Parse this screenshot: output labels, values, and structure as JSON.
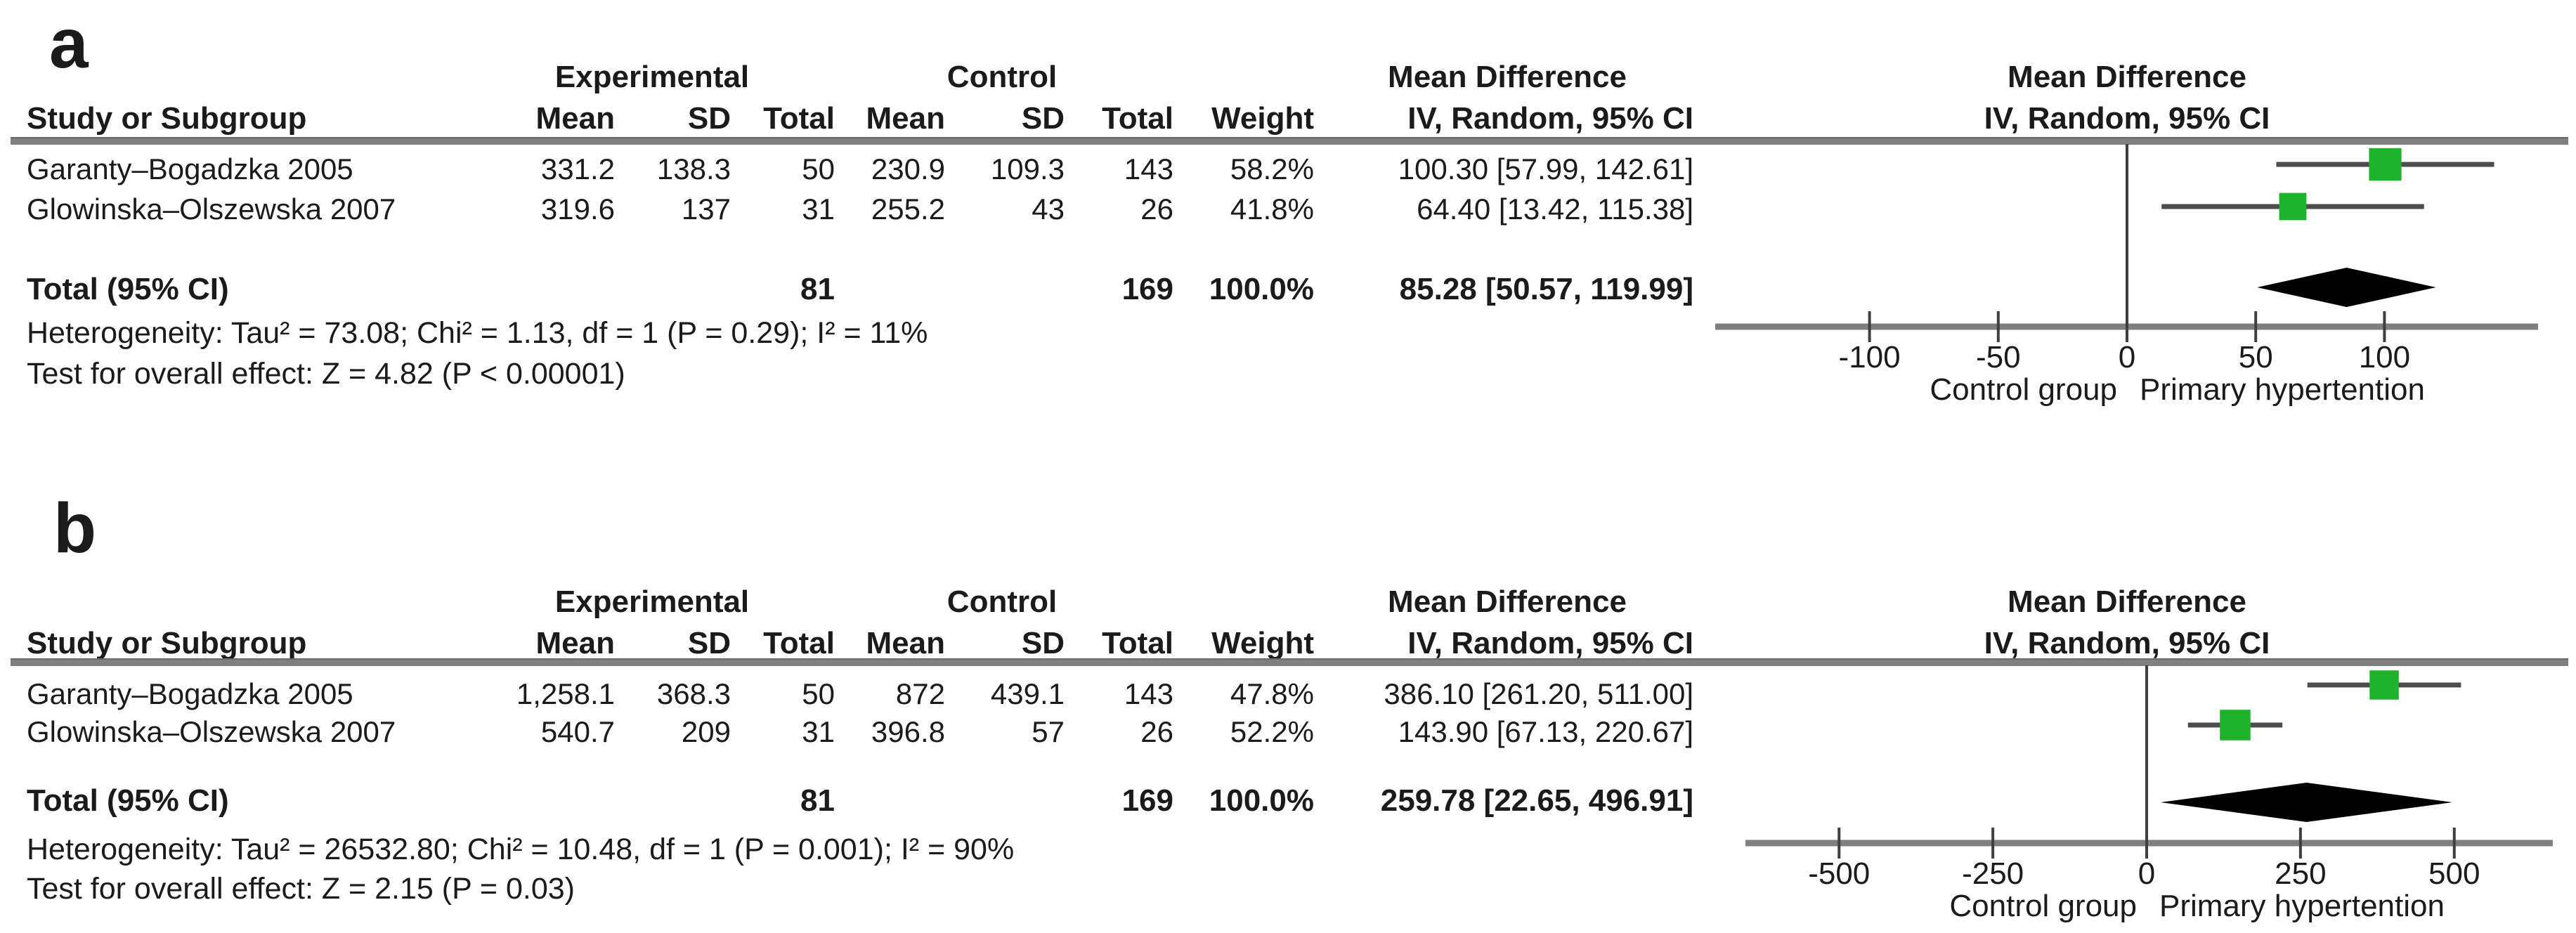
{
  "figure": {
    "colors": {
      "marker": "#1eb32b",
      "diamond": "#000000",
      "axis": "#7f7f7f",
      "ci_line": "#4d4d4d",
      "text": "#1b1b1b"
    },
    "panels": [
      {
        "label": "a",
        "headers": {
          "study": "Study or Subgroup",
          "experimental": "Experimental",
          "control": "Control",
          "mean_difference": "Mean Difference",
          "mean": "Mean",
          "sd": "SD",
          "total": "Total",
          "weight": "Weight",
          "iv": "IV, Random, 95% CI"
        },
        "studies": [
          {
            "name": "Garanty–Bogadzka 2005",
            "exp_mean": "331.2",
            "exp_sd": "138.3",
            "exp_total": "50",
            "ctl_mean": "230.9",
            "ctl_sd": "109.3",
            "ctl_total": "143",
            "weight": "58.2%",
            "md_ci": "100.30 [57.99, 142.61]"
          },
          {
            "name": "Glowinska–Olszewska 2007",
            "exp_mean": "319.6",
            "exp_sd": "137",
            "exp_total": "31",
            "ctl_mean": "255.2",
            "ctl_sd": "43",
            "ctl_total": "26",
            "weight": "41.8%",
            "md_ci": "64.40 [13.42, 115.38]"
          }
        ],
        "total_row": {
          "label": "Total (95% CI)",
          "exp_total": "81",
          "ctl_total": "169",
          "weight": "100.0%",
          "md_ci": "85.28 [50.57, 119.99]"
        },
        "heterogeneity": "Heterogeneity: Tau² = 73.08; Chi² = 1.13, df = 1 (P = 0.29); I² = 11%",
        "overall_effect": "Test for overall effect: Z = 4.82 (P < 0.00001)"
      },
      {
        "label": "b",
        "headers": {
          "study": "Study or Subgroup",
          "experimental": "Experimental",
          "control": "Control",
          "mean_difference": "Mean Difference",
          "mean": "Mean",
          "sd": "SD",
          "total": "Total",
          "weight": "Weight",
          "iv": "IV, Random, 95% CI"
        },
        "studies": [
          {
            "name": "Garanty–Bogadzka 2005",
            "exp_mean": "1,258.1",
            "exp_sd": "368.3",
            "exp_total": "50",
            "ctl_mean": "872",
            "ctl_sd": "439.1",
            "ctl_total": "143",
            "weight": "47.8%",
            "md_ci": "386.10 [261.20, 511.00]"
          },
          {
            "name": "Glowinska–Olszewska 2007",
            "exp_mean": "540.7",
            "exp_sd": "209",
            "exp_total": "31",
            "ctl_mean": "396.8",
            "ctl_sd": "57",
            "ctl_total": "26",
            "weight": "52.2%",
            "md_ci": "143.90 [67.13, 220.67]"
          }
        ],
        "total_row": {
          "label": "Total (95% CI)",
          "exp_total": "81",
          "ctl_total": "169",
          "weight": "100.0%",
          "md_ci": "259.78 [22.65, 496.91]"
        },
        "heterogeneity": "Heterogeneity: Tau² = 26532.80; Chi² = 10.48, df = 1 (P = 0.001); I² = 90%",
        "overall_effect": "Test for overall effect: Z = 2.15 (P = 0.03)"
      }
    ]
  },
  "chart_data": [
    {
      "panel": "a",
      "type": "forest",
      "effect_measure": "Mean Difference",
      "method": "IV, Random, 95% CI",
      "studies": [
        {
          "name": "Garanty–Bogadzka 2005",
          "md": 100.3,
          "ci": [
            57.99,
            142.61
          ],
          "weight": 58.2
        },
        {
          "name": "Glowinska–Olszewska 2007",
          "md": 64.4,
          "ci": [
            13.42,
            115.38
          ],
          "weight": 41.8
        }
      ],
      "overall": {
        "md": 85.28,
        "ci": [
          50.57,
          119.99
        ]
      },
      "x_ticks": [
        -100,
        -50,
        0,
        50,
        100
      ],
      "xlim": [
        -160,
        160
      ],
      "favours_left": "Control group",
      "favours_right": "Primary hypertention"
    },
    {
      "panel": "b",
      "type": "forest",
      "effect_measure": "Mean Difference",
      "method": "IV, Random, 95% CI",
      "studies": [
        {
          "name": "Garanty–Bogadzka 2005",
          "md": 386.1,
          "ci": [
            261.2,
            511.0
          ],
          "weight": 47.8
        },
        {
          "name": "Glowinska–Olszewska 2007",
          "md": 143.9,
          "ci": [
            67.13,
            220.67
          ],
          "weight": 52.2
        }
      ],
      "overall": {
        "md": 259.78,
        "ci": [
          22.65,
          496.91
        ]
      },
      "x_ticks": [
        -500,
        -250,
        0,
        250,
        500
      ],
      "xlim": [
        -660,
        665
      ],
      "favours_left": "Control group",
      "favours_right": "Primary hypertention"
    }
  ]
}
